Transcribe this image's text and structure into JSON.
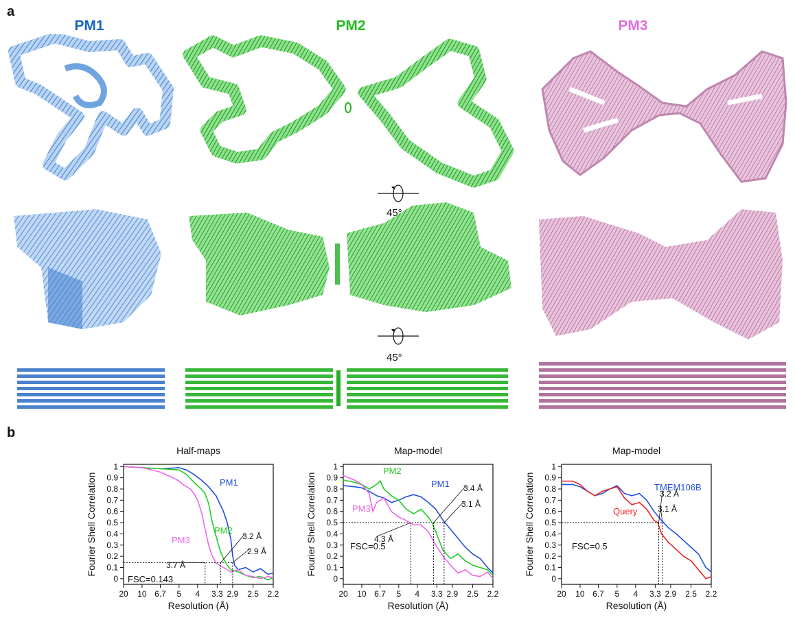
{
  "figure": {
    "panel_a_label": "a",
    "panel_b_label": "b",
    "rotation_label": "45°",
    "colors": {
      "pm1": "#1565c8",
      "pm2": "#22bb22",
      "pm3": "#e070e0",
      "pm1_light": "#9cc3ea",
      "pm2_map": "#2ebf2e",
      "pm3_map": "#c07aa8",
      "query": "#ee2222",
      "tmem106b": "#1f4fdd"
    }
  },
  "maps": {
    "pm1_title": "PM1",
    "pm2_title": "PM2",
    "pm3_title": "PM3"
  },
  "chart_data": [
    {
      "type": "line",
      "title": "Half-maps",
      "xlabel": "Resolution (Å)",
      "ylabel": "Fourier Shell Correlation",
      "x_ticks": [
        "20",
        "10",
        "6.7",
        "5",
        "4",
        "3.3",
        "2.9",
        "2.5",
        "2.2"
      ],
      "y_ticks": [
        "1",
        "0.9",
        "0.8",
        "0.7",
        "0.6",
        "0.5",
        "0.4",
        "0.3",
        "0.2",
        "0.1",
        "0"
      ],
      "ylim": [
        -0.05,
        1.02
      ],
      "x_unit": "1/Å (spatial frequency)",
      "threshold": {
        "label": "FSC=0.143",
        "value": 0.143
      },
      "series": [
        {
          "name": "PM1",
          "color": "#1f4fdd",
          "x": [
            0.05,
            0.1,
            0.15,
            0.2,
            0.22,
            0.24,
            0.26,
            0.28,
            0.3,
            0.32,
            0.33,
            0.34,
            0.345,
            0.35,
            0.36,
            0.38,
            0.4,
            0.42,
            0.44,
            0.455
          ],
          "y": [
            1.0,
            0.99,
            0.98,
            0.99,
            0.97,
            0.93,
            0.88,
            0.82,
            0.74,
            0.6,
            0.5,
            0.35,
            0.2,
            0.12,
            0.08,
            0.1,
            0.06,
            0.09,
            0.04,
            0.05
          ]
        },
        {
          "name": "PM2",
          "color": "#22cc22",
          "x": [
            0.05,
            0.1,
            0.15,
            0.2,
            0.22,
            0.24,
            0.26,
            0.27,
            0.28,
            0.29,
            0.3,
            0.31,
            0.32,
            0.33,
            0.34,
            0.36,
            0.38,
            0.4,
            0.42,
            0.44,
            0.455
          ],
          "y": [
            1.0,
            0.99,
            0.98,
            0.97,
            0.93,
            0.86,
            0.8,
            0.76,
            0.67,
            0.5,
            0.38,
            0.26,
            0.18,
            0.12,
            0.08,
            0.06,
            0.03,
            0.01,
            0.02,
            -0.01,
            0.01
          ]
        },
        {
          "name": "PM3",
          "color": "#ee66ee",
          "x": [
            0.05,
            0.1,
            0.15,
            0.17,
            0.19,
            0.2,
            0.21,
            0.22,
            0.23,
            0.24,
            0.25,
            0.26,
            0.27,
            0.28,
            0.29,
            0.3,
            0.32,
            0.34,
            0.36,
            0.38,
            0.4,
            0.42,
            0.44,
            0.455
          ],
          "y": [
            1.0,
            0.99,
            0.95,
            0.92,
            0.89,
            0.87,
            0.84,
            0.82,
            0.8,
            0.76,
            0.7,
            0.6,
            0.45,
            0.3,
            0.2,
            0.14,
            0.1,
            0.06,
            0.08,
            0.03,
            0.02,
            0.0,
            0.02,
            0.01
          ]
        }
      ],
      "markers": [
        {
          "label": "3.7 Å",
          "x": 0.2703
        },
        {
          "label": "3.2 Å",
          "x": 0.3125
        },
        {
          "label": "2.9 Å",
          "x": 0.3448
        }
      ]
    },
    {
      "type": "line",
      "title": "Map-model",
      "xlabel": "Resolution (Å)",
      "ylabel": "Fourier Shell Correlation",
      "x_ticks": [
        "20",
        "10",
        "6.7",
        "5",
        "4",
        "3.3",
        "2.9",
        "2.5",
        "2.2"
      ],
      "y_ticks": [
        "1",
        "0.9",
        "0.8",
        "0.7",
        "0.6",
        "0.5",
        "0.4",
        "0.3",
        "0.2",
        "0.1",
        "0"
      ],
      "ylim": [
        -0.05,
        1.02
      ],
      "threshold": {
        "label": "FSC=0.5",
        "value": 0.5
      },
      "series": [
        {
          "name": "PM1",
          "color": "#1f4fdd",
          "x": [
            0.05,
            0.08,
            0.1,
            0.12,
            0.14,
            0.16,
            0.18,
            0.2,
            0.22,
            0.24,
            0.26,
            0.28,
            0.3,
            0.32,
            0.34,
            0.36,
            0.38,
            0.4,
            0.42,
            0.44,
            0.455
          ],
          "y": [
            0.83,
            0.82,
            0.81,
            0.78,
            0.74,
            0.72,
            0.68,
            0.7,
            0.73,
            0.75,
            0.73,
            0.68,
            0.62,
            0.52,
            0.44,
            0.36,
            0.28,
            0.22,
            0.18,
            0.1,
            0.05
          ]
        },
        {
          "name": "PM2",
          "color": "#22cc22",
          "x": [
            0.05,
            0.08,
            0.1,
            0.12,
            0.14,
            0.15,
            0.16,
            0.18,
            0.2,
            0.22,
            0.24,
            0.26,
            0.28,
            0.29,
            0.3,
            0.32,
            0.34,
            0.36,
            0.38,
            0.4,
            0.42,
            0.44,
            0.455
          ],
          "y": [
            0.88,
            0.86,
            0.84,
            0.8,
            0.84,
            0.87,
            0.8,
            0.74,
            0.7,
            0.62,
            0.58,
            0.62,
            0.55,
            0.5,
            0.42,
            0.25,
            0.18,
            0.22,
            0.16,
            0.12,
            0.1,
            0.08,
            0.03
          ]
        },
        {
          "name": "PM3",
          "color": "#ee66ee",
          "x": [
            0.05,
            0.08,
            0.1,
            0.12,
            0.13,
            0.14,
            0.16,
            0.18,
            0.2,
            0.22,
            0.23,
            0.24,
            0.26,
            0.28,
            0.3,
            0.32,
            0.34,
            0.36,
            0.38,
            0.4,
            0.42,
            0.44,
            0.455
          ],
          "y": [
            0.92,
            0.88,
            0.84,
            0.76,
            0.6,
            0.68,
            0.72,
            0.6,
            0.55,
            0.52,
            0.5,
            0.48,
            0.48,
            0.42,
            0.3,
            0.2,
            0.12,
            0.05,
            0.08,
            0.03,
            0.02,
            0.06,
            0.0
          ]
        }
      ],
      "markers": [
        {
          "label": "4.3 Å",
          "x": 0.2326
        },
        {
          "label": "3.4 Å",
          "x": 0.2941
        },
        {
          "label": "3.1 Å",
          "x": 0.3226
        }
      ]
    },
    {
      "type": "line",
      "title": "Map-model",
      "xlabel": "Resolution (Å)",
      "ylabel": "Fourier Shell Correlation",
      "x_ticks": [
        "20",
        "10",
        "6.7",
        "5",
        "4",
        "3.3",
        "2.9",
        "2.5",
        "2.2"
      ],
      "y_ticks": [
        "1",
        "0.9",
        "0.8",
        "0.7",
        "0.6",
        "0.5",
        "0.4",
        "0.3",
        "0.2",
        "0.1",
        "0"
      ],
      "ylim": [
        -0.05,
        1.02
      ],
      "threshold": {
        "label": "FSC=0.5",
        "value": 0.5
      },
      "series": [
        {
          "name": "TMEM106B",
          "color": "#1f4fdd",
          "x": [
            0.05,
            0.08,
            0.1,
            0.12,
            0.14,
            0.16,
            0.18,
            0.2,
            0.22,
            0.24,
            0.26,
            0.28,
            0.3,
            0.32,
            0.34,
            0.36,
            0.38,
            0.4,
            0.42,
            0.44,
            0.455
          ],
          "y": [
            0.84,
            0.84,
            0.82,
            0.78,
            0.74,
            0.76,
            0.8,
            0.83,
            0.76,
            0.74,
            0.76,
            0.7,
            0.6,
            0.52,
            0.45,
            0.4,
            0.34,
            0.28,
            0.22,
            0.1,
            0.06
          ]
        },
        {
          "name": "Query",
          "color": "#ee2222",
          "x": [
            0.05,
            0.08,
            0.1,
            0.12,
            0.14,
            0.16,
            0.18,
            0.2,
            0.22,
            0.24,
            0.26,
            0.28,
            0.3,
            0.31,
            0.32,
            0.34,
            0.36,
            0.38,
            0.4,
            0.42,
            0.44,
            0.455
          ],
          "y": [
            0.87,
            0.87,
            0.84,
            0.78,
            0.74,
            0.78,
            0.8,
            0.82,
            0.72,
            0.66,
            0.68,
            0.62,
            0.52,
            0.5,
            0.4,
            0.32,
            0.26,
            0.2,
            0.16,
            0.08,
            0.0,
            0.02
          ]
        }
      ],
      "markers": [
        {
          "label": "3.2 Å",
          "x": 0.3125
        },
        {
          "label": "3.1 Å",
          "x": 0.3226
        }
      ]
    }
  ]
}
